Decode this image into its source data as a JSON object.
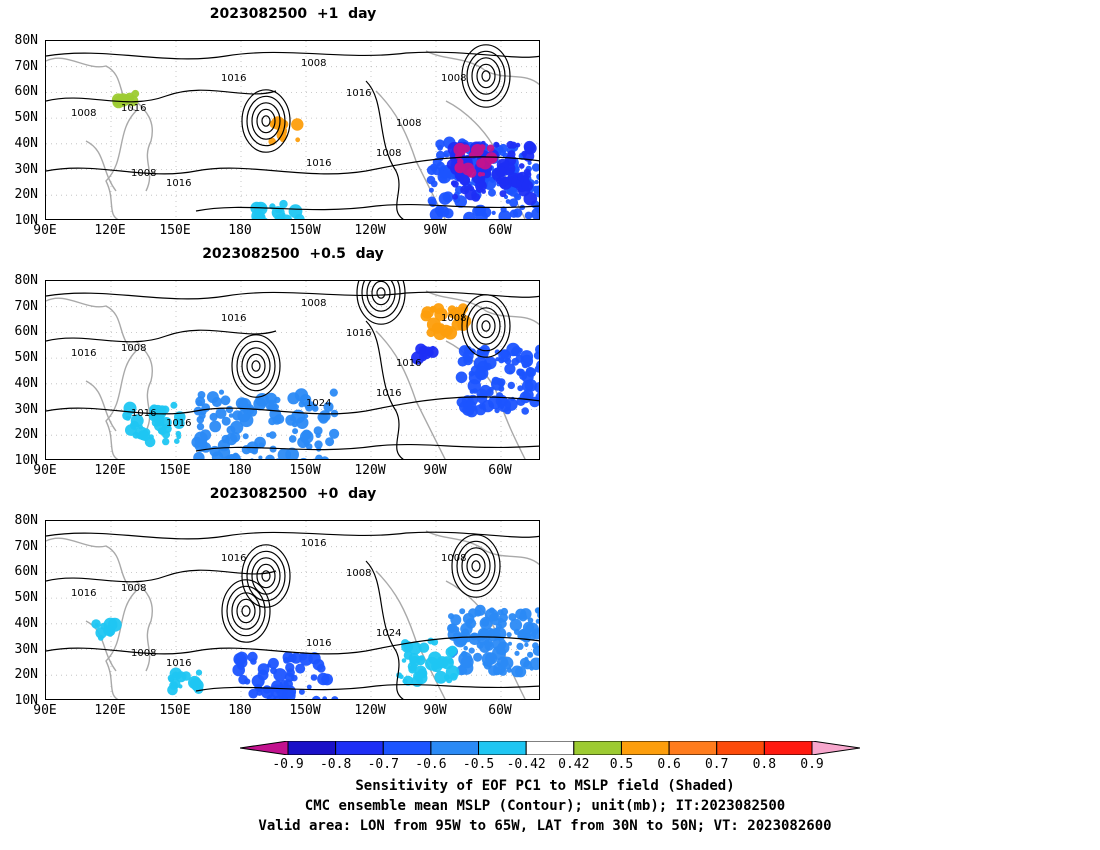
{
  "panels": [
    {
      "title": "2023082500  +1  day",
      "contour_labels": [
        "1008",
        "1016",
        "1016",
        "1008",
        "1016",
        "1008",
        "1016",
        "1008",
        "1016",
        "1008",
        "1008"
      ]
    },
    {
      "title": "2023082500  +0.5  day",
      "contour_labels": [
        "1016",
        "1008",
        "1016",
        "1008",
        "1016",
        "1016",
        "1024",
        "1016",
        "1016",
        "1008",
        "1016"
      ]
    },
    {
      "title": "2023082500  +0  day",
      "contour_labels": [
        "1016",
        "1008",
        "1016",
        "1016",
        "1008",
        "1024",
        "1016",
        "1008",
        "1016",
        "1008"
      ]
    }
  ],
  "axes": {
    "lat_labels": [
      "80N",
      "70N",
      "60N",
      "50N",
      "40N",
      "30N",
      "20N",
      "10N"
    ],
    "lon_labels": [
      "90E",
      "120E",
      "150E",
      "180",
      "150W",
      "120W",
      "90W",
      "60W"
    ]
  },
  "colorbar": {
    "ticks": [
      "-0.9",
      "-0.8",
      "-0.7",
      "-0.6",
      "-0.5",
      "-0.42",
      "0.42",
      "0.5",
      "0.6",
      "0.7",
      "0.8",
      "0.9"
    ],
    "colors": [
      "#c2128e",
      "#1a10c8",
      "#1e2ef5",
      "#1c54ff",
      "#2b8af5",
      "#1fc6f2",
      "#ffffff",
      "#9dcb32",
      "#fd9e0c",
      "#ff7c1d",
      "#fd4b0a",
      "#ff1a10",
      "#f7a7cd"
    ]
  },
  "caption": {
    "line1": "Sensitivity of EOF PC1 to MSLP field (Shaded)",
    "line2": "CMC ensemble mean MSLP (Contour); unit(mb); IT:2023082500",
    "line3": "Valid area: LON from 95W to 65W, LAT from 30N to 50N; VT: 2023082600"
  }
}
